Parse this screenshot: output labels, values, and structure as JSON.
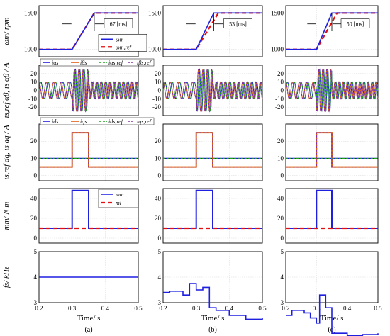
{
  "figure": {
    "columns": [
      {
        "caption": "(a)",
        "xlabel": "Time/ s"
      },
      {
        "caption": "(b)",
        "xlabel": "Time/ s"
      },
      {
        "caption": "(c)",
        "xlabel": "Time/ s"
      }
    ],
    "rows": [
      {
        "ylabel": "ωm/ rpm",
        "yticks": [
          "1000",
          "1500"
        ],
        "ylim": [
          900,
          1600
        ]
      },
      {
        "ylabel": "is,ref αβ, is αβ / A",
        "yticks": [
          "-20",
          "-10",
          "0",
          "10",
          "20"
        ],
        "ylim": [
          -30,
          30
        ]
      },
      {
        "ylabel": "is,ref dq, is dq / A",
        "yticks": [
          "0",
          "10",
          "20"
        ],
        "ylim": [
          -3,
          30
        ]
      },
      {
        "ylabel": "mm/ N m",
        "yticks": [
          "0",
          "20",
          "40"
        ],
        "ylim": [
          -5,
          50
        ]
      },
      {
        "ylabel": "fs/ kHz",
        "yticks": [
          "3",
          "4",
          "5"
        ],
        "ylim": [
          3,
          5
        ]
      }
    ],
    "xticks": [
      "0.2",
      "0.3",
      "0.4",
      "0.5"
    ],
    "legends": {
      "speed": [
        "ωm",
        "ωm,ref"
      ],
      "alphabeta": [
        "iαs",
        "iβs",
        "iαs,ref",
        "iβs,ref"
      ],
      "dq": [
        "ids",
        "iqs",
        "ids,ref",
        "iqs,ref"
      ],
      "torque": [
        "mm",
        "ml"
      ]
    },
    "annotations": [
      "67 [ms]",
      "53 [ms]",
      "50 [ms]"
    ],
    "colors": {
      "blue": "#1f1fe0",
      "red": "#e01010",
      "orange": "#e06010",
      "green": "#20a020",
      "purple": "#8030a0"
    }
  },
  "chart_data": [
    {
      "type": "line",
      "panel": "speed",
      "x": [
        0.2,
        0.3,
        0.367,
        0.5
      ],
      "series": [
        {
          "name": "ωm",
          "values": [
            1000,
            1000,
            1500,
            1500
          ],
          "ramp_ms": [
            67,
            53,
            50
          ]
        },
        {
          "name": "ωm,ref",
          "values": [
            1000,
            1000,
            1500,
            1500
          ]
        }
      ]
    },
    {
      "type": "line",
      "panel": "alphabeta",
      "amplitude_A": [
        10,
        25,
        10
      ],
      "series": [
        {
          "name": "iαs"
        },
        {
          "name": "iβs"
        },
        {
          "name": "iαs,ref"
        },
        {
          "name": "iβs,ref"
        }
      ]
    },
    {
      "type": "line",
      "panel": "dq",
      "x": [
        0.2,
        0.3,
        0.35,
        0.5
      ],
      "series": [
        {
          "name": "ids",
          "values": [
            10,
            10,
            10,
            10
          ]
        },
        {
          "name": "iqs",
          "values": [
            5,
            25,
            5,
            5
          ]
        },
        {
          "name": "ids,ref",
          "values": [
            10,
            10,
            10,
            10
          ]
        },
        {
          "name": "iqs,ref",
          "values": [
            5,
            25,
            5,
            5
          ]
        }
      ]
    },
    {
      "type": "line",
      "panel": "torque",
      "x": [
        0.2,
        0.3,
        0.35,
        0.5
      ],
      "series": [
        {
          "name": "mm",
          "values": [
            10,
            48,
            10,
            10
          ]
        },
        {
          "name": "ml",
          "values": [
            10,
            10,
            10,
            10
          ]
        }
      ]
    },
    {
      "type": "line",
      "panel": "fs",
      "series": [
        {
          "name": "(a)",
          "x": [
            0.2,
            0.5
          ],
          "values": [
            4,
            4
          ]
        },
        {
          "name": "(b)",
          "x": [
            0.2,
            0.22,
            0.26,
            0.28,
            0.3,
            0.32,
            0.34,
            0.36,
            0.4,
            0.45,
            0.5
          ],
          "values": [
            3.4,
            3.45,
            3.3,
            3.75,
            3.5,
            3.6,
            2.8,
            2.7,
            2.5,
            2.35,
            2.4
          ]
        },
        {
          "name": "(c)",
          "x": [
            0.2,
            0.22,
            0.26,
            0.28,
            0.3,
            0.31,
            0.33,
            0.35,
            0.4,
            0.45,
            0.5
          ],
          "values": [
            2.5,
            2.7,
            2.6,
            2.4,
            2.2,
            3.3,
            2.8,
            1.8,
            1.7,
            1.75,
            1.8
          ]
        }
      ]
    }
  ]
}
